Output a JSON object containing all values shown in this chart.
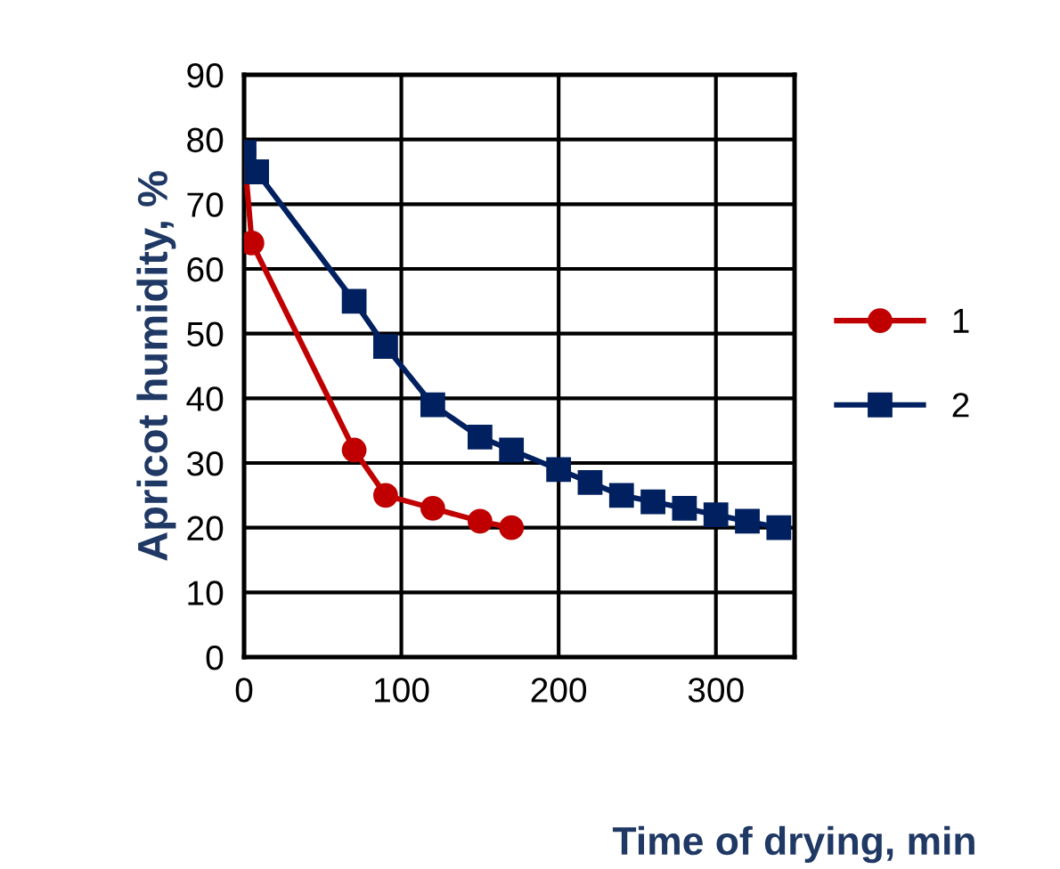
{
  "chart_data": {
    "type": "line",
    "xlabel": "Time of drying, min",
    "ylabel": "Apricot humidity, %",
    "xlim": [
      0,
      350
    ],
    "ylim": [
      0,
      90
    ],
    "xticks": [
      0,
      100,
      200,
      300
    ],
    "yticks": [
      0,
      10,
      20,
      30,
      40,
      50,
      60,
      70,
      80,
      90
    ],
    "grid": true,
    "legend": "right",
    "line_style": "solid",
    "series": [
      {
        "name": "1",
        "color": "#c00000",
        "marker": "circle",
        "x": [
          0,
          5,
          70,
          90,
          120,
          150,
          170
        ],
        "values": [
          78,
          64,
          32,
          25,
          23,
          21,
          20
        ]
      },
      {
        "name": "2",
        "color": "#002060",
        "marker": "square",
        "x": [
          0,
          8,
          70,
          90,
          120,
          150,
          170,
          200,
          220,
          240,
          260,
          280,
          300,
          320,
          340
        ],
        "values": [
          78,
          75,
          55,
          48,
          39,
          34,
          32,
          29,
          27,
          25,
          24,
          23,
          22,
          21,
          20
        ]
      }
    ]
  }
}
